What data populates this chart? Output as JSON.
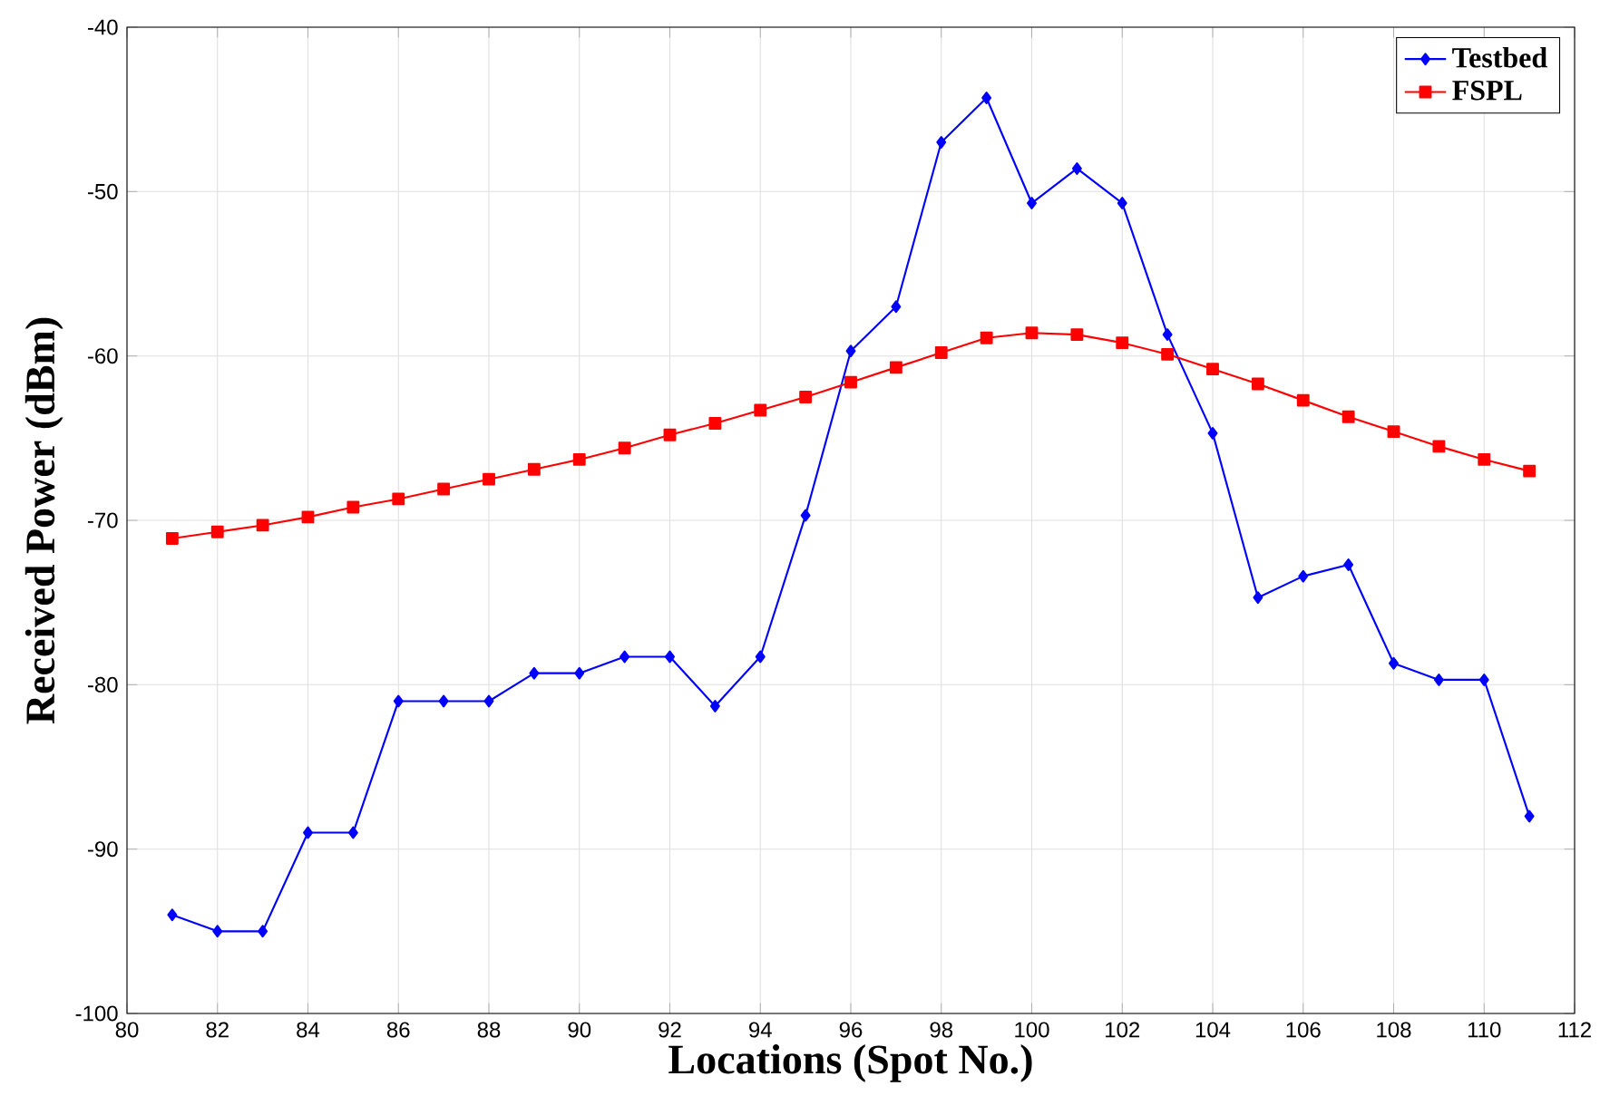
{
  "chart_data": {
    "type": "line",
    "xlabel": "Locations (Spot No.)",
    "ylabel": "Received Power (dBm)",
    "x": [
      81,
      82,
      83,
      84,
      85,
      86,
      87,
      88,
      89,
      90,
      91,
      92,
      93,
      94,
      95,
      96,
      97,
      98,
      99,
      100,
      101,
      102,
      103,
      104,
      105,
      106,
      107,
      108,
      109,
      110,
      111
    ],
    "series": [
      {
        "name": "Testbed",
        "color": "#0000ff",
        "marker": "diamond",
        "values": [
          -94,
          -95,
          -95,
          -89,
          -89,
          -81,
          -81,
          -81,
          -79.3,
          -79.3,
          -78.3,
          -78.3,
          -81.3,
          -78.3,
          -69.7,
          -59.7,
          -57,
          -47,
          -44.3,
          -50.7,
          -48.6,
          -50.7,
          -58.7,
          -64.7,
          -74.7,
          -73.4,
          -72.7,
          -78.7,
          -79.7,
          -79.7,
          -88
        ]
      },
      {
        "name": "FSPL",
        "color": "#ff0000",
        "marker": "square",
        "values": [
          -71.1,
          -70.7,
          -70.3,
          -69.8,
          -69.2,
          -68.7,
          -68.1,
          -67.5,
          -66.9,
          -66.3,
          -65.6,
          -64.8,
          -64.1,
          -63.3,
          -62.5,
          -61.6,
          -60.7,
          -59.8,
          -58.9,
          -58.6,
          -58.7,
          -59.2,
          -59.9,
          -60.8,
          -61.7,
          -62.7,
          -63.7,
          -64.6,
          -65.5,
          -66.3,
          -67.0
        ]
      }
    ],
    "xlim": [
      80,
      112
    ],
    "xticks": [
      80,
      82,
      84,
      86,
      88,
      90,
      92,
      94,
      96,
      98,
      100,
      102,
      104,
      106,
      108,
      110,
      112
    ],
    "ylim": [
      -100,
      -40
    ],
    "yticks": [
      -100,
      -90,
      -80,
      -70,
      -60,
      -50,
      -40
    ],
    "grid": true,
    "legend": "top right",
    "line_style": "solid"
  }
}
